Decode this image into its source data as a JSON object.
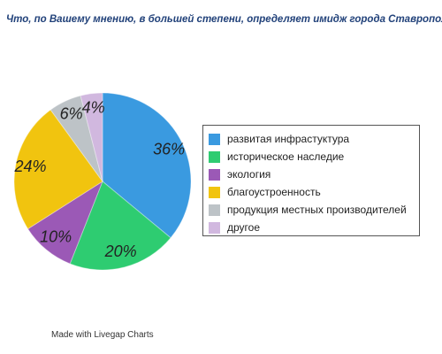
{
  "chart_data": {
    "type": "pie",
    "title": "Что, по Вашему мнению, в большей степени, определяет имидж города Ставрополя:",
    "categories": [
      "развитая инфрастуктура",
      "историческое наследие",
      "экология",
      "благоустроенность",
      "продукция местных производителей",
      "другое"
    ],
    "values": [
      36,
      20,
      10,
      24,
      6,
      4
    ],
    "value_labels": [
      "36%",
      "20%",
      "10%",
      "24%",
      "6%",
      "4%"
    ],
    "colors": [
      "#3a9ae0",
      "#2ecc71",
      "#9b59b6",
      "#f1c40f",
      "#bdc3c7",
      "#d1b8df"
    ],
    "legend_position": "right"
  },
  "footer": {
    "text": "Made with Livegap Charts"
  }
}
